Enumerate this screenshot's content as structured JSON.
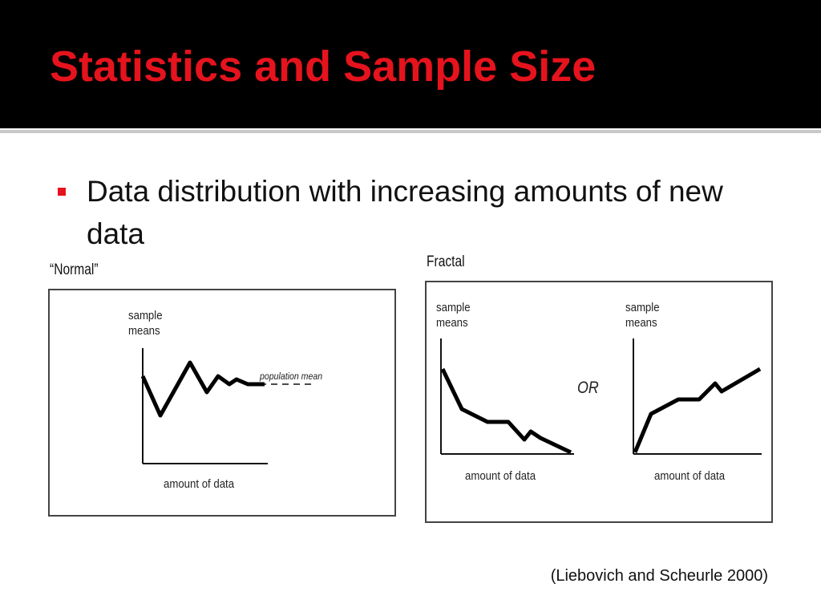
{
  "slide": {
    "title": "Statistics and Sample Size",
    "bullet": "Data distribution with increasing amounts of new data",
    "citation": "(Liebovich and Scheurle 2000)"
  },
  "figures": {
    "normal": {
      "label": "“Normal”",
      "ylabel_line1": "sample",
      "ylabel_line2": "means",
      "xlabel": "amount of data",
      "reference_label": "population mean"
    },
    "fractal": {
      "label": "Fractal",
      "connector": "OR",
      "left": {
        "ylabel_line1": "sample",
        "ylabel_line2": "means",
        "xlabel": "amount of data"
      },
      "right": {
        "ylabel_line1": "sample",
        "ylabel_line2": "means",
        "xlabel": "amount of data"
      }
    }
  },
  "colors": {
    "title": "#e5131d",
    "bullet": "#e5131d",
    "header_background": "#000000"
  }
}
